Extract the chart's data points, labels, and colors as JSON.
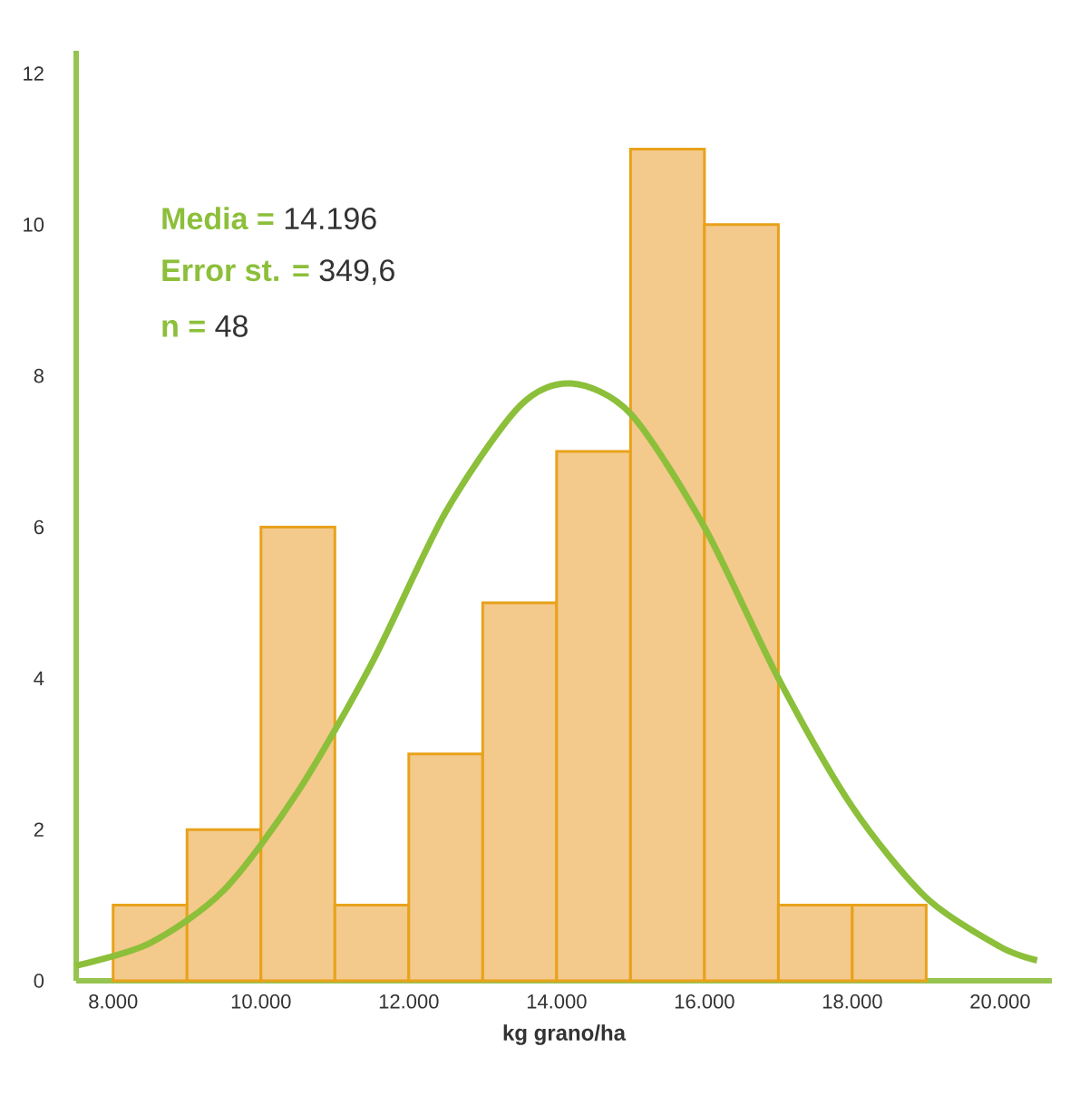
{
  "chart_data": {
    "type": "histogram",
    "xlabel": "kg grano/ha",
    "bins": [
      8000,
      9000,
      10000,
      11000,
      12000,
      13000,
      14000,
      15000,
      16000,
      17000,
      18000,
      19000
    ],
    "values": [
      1,
      2,
      6,
      1,
      3,
      5,
      7,
      11,
      10,
      1,
      1
    ],
    "color": "#f4c98c",
    "series": [
      {
        "type": "line",
        "color": "#8cbf3a",
        "x": [
          7500,
          8500,
          9500,
          10500,
          11500,
          12500,
          13500,
          14200,
          15000,
          16000,
          17000,
          18000,
          19000,
          20000,
          20500
        ],
        "values": [
          0.2,
          0.5,
          1.2,
          2.5,
          4.2,
          6.2,
          7.6,
          7.9,
          7.5,
          6.0,
          4.0,
          2.3,
          1.1,
          0.45,
          0.27
        ]
      }
    ],
    "annotations": [
      "**Media =** 14.196",
      "**Error st. =** 349,6",
      "**n =** 48"
    ],
    "xlim": [
      7500,
      20700
    ],
    "ylim": [
      0,
      12.3
    ],
    "xticks": [
      {
        "value": 8000,
        "label": "8.000"
      },
      {
        "value": 10000,
        "label": "10.000"
      },
      {
        "value": 12000,
        "label": "12.000"
      },
      {
        "value": 14000,
        "label": "14.000"
      },
      {
        "value": 16000,
        "label": "16.000"
      },
      {
        "value": 18000,
        "label": "18.000"
      },
      {
        "value": 20000,
        "label": "20.000"
      }
    ],
    "yticks": [
      0,
      2,
      4,
      6,
      8,
      10,
      12
    ]
  }
}
